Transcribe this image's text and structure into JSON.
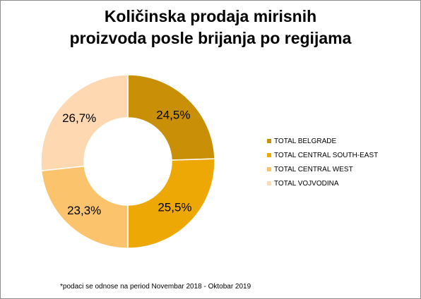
{
  "chart_data": {
    "type": "pie",
    "title_lines": [
      "Količinska prodaja mirisnih",
      "proizvoda posle brijanja po regijama"
    ],
    "categories": [
      "TOTAL BELGRADE",
      "TOTAL CENTRAL SOUTH-EAST",
      "TOTAL CENTRAL WEST",
      "TOTAL VOJVODINA"
    ],
    "values": [
      24.5,
      25.5,
      23.3,
      26.7
    ],
    "value_labels": [
      "24,5%",
      "25,5%",
      "23,3%",
      "26,7%"
    ],
    "colors": [
      "#C98F06",
      "#EDA805",
      "#FBC36B",
      "#FDD8B0"
    ],
    "donut": true,
    "legend_position": "right"
  },
  "footnote": "*podaci se odnose na period Novembar 2018 - Oktobar 2019"
}
